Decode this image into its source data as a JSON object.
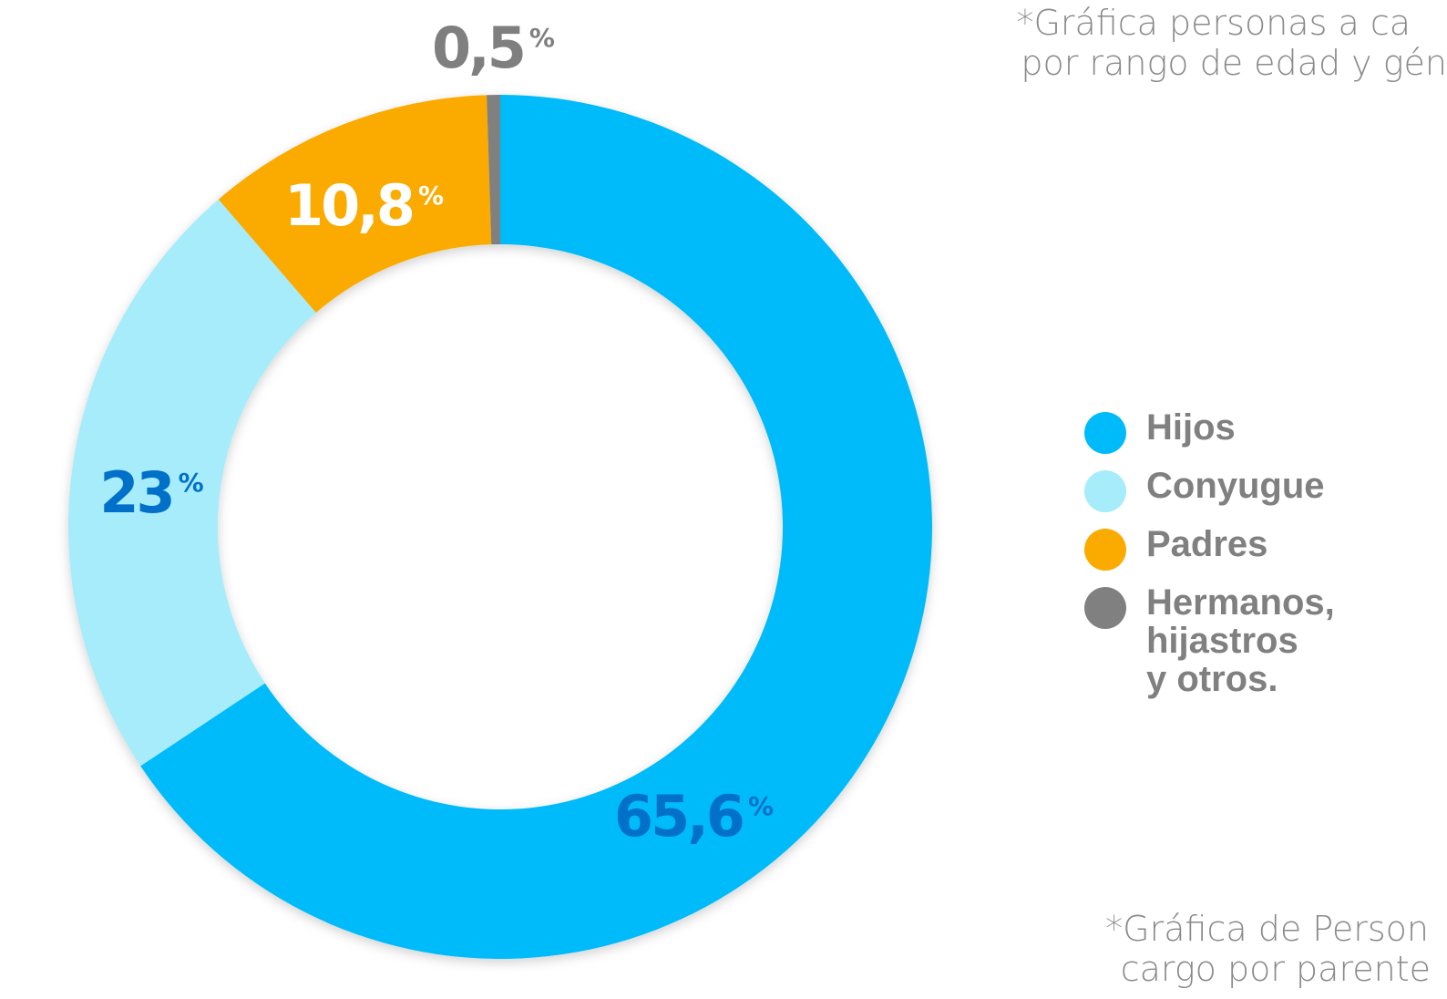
{
  "chart_data": {
    "type": "donut",
    "categories": [
      "Hijos",
      "Conyugue",
      "Padres",
      "Hermanos, hijastros y otros."
    ],
    "values": [
      65.6,
      23,
      10.8,
      0.5
    ],
    "value_labels": [
      "65,6%",
      "23%",
      "10,8%",
      "0,5%"
    ],
    "colors": [
      "#00bbf9",
      "#a6ecfb",
      "#fbab00",
      "#808080"
    ],
    "label_colors": [
      "#0070c9",
      "#0070c9",
      "#ffffff",
      "#7f7f7f"
    ],
    "annotations": [
      "*Gráfica personas a ca",
      "por rango de edad y gén",
      "*Gráfica de Person",
      "cargo por parente"
    ]
  }
}
